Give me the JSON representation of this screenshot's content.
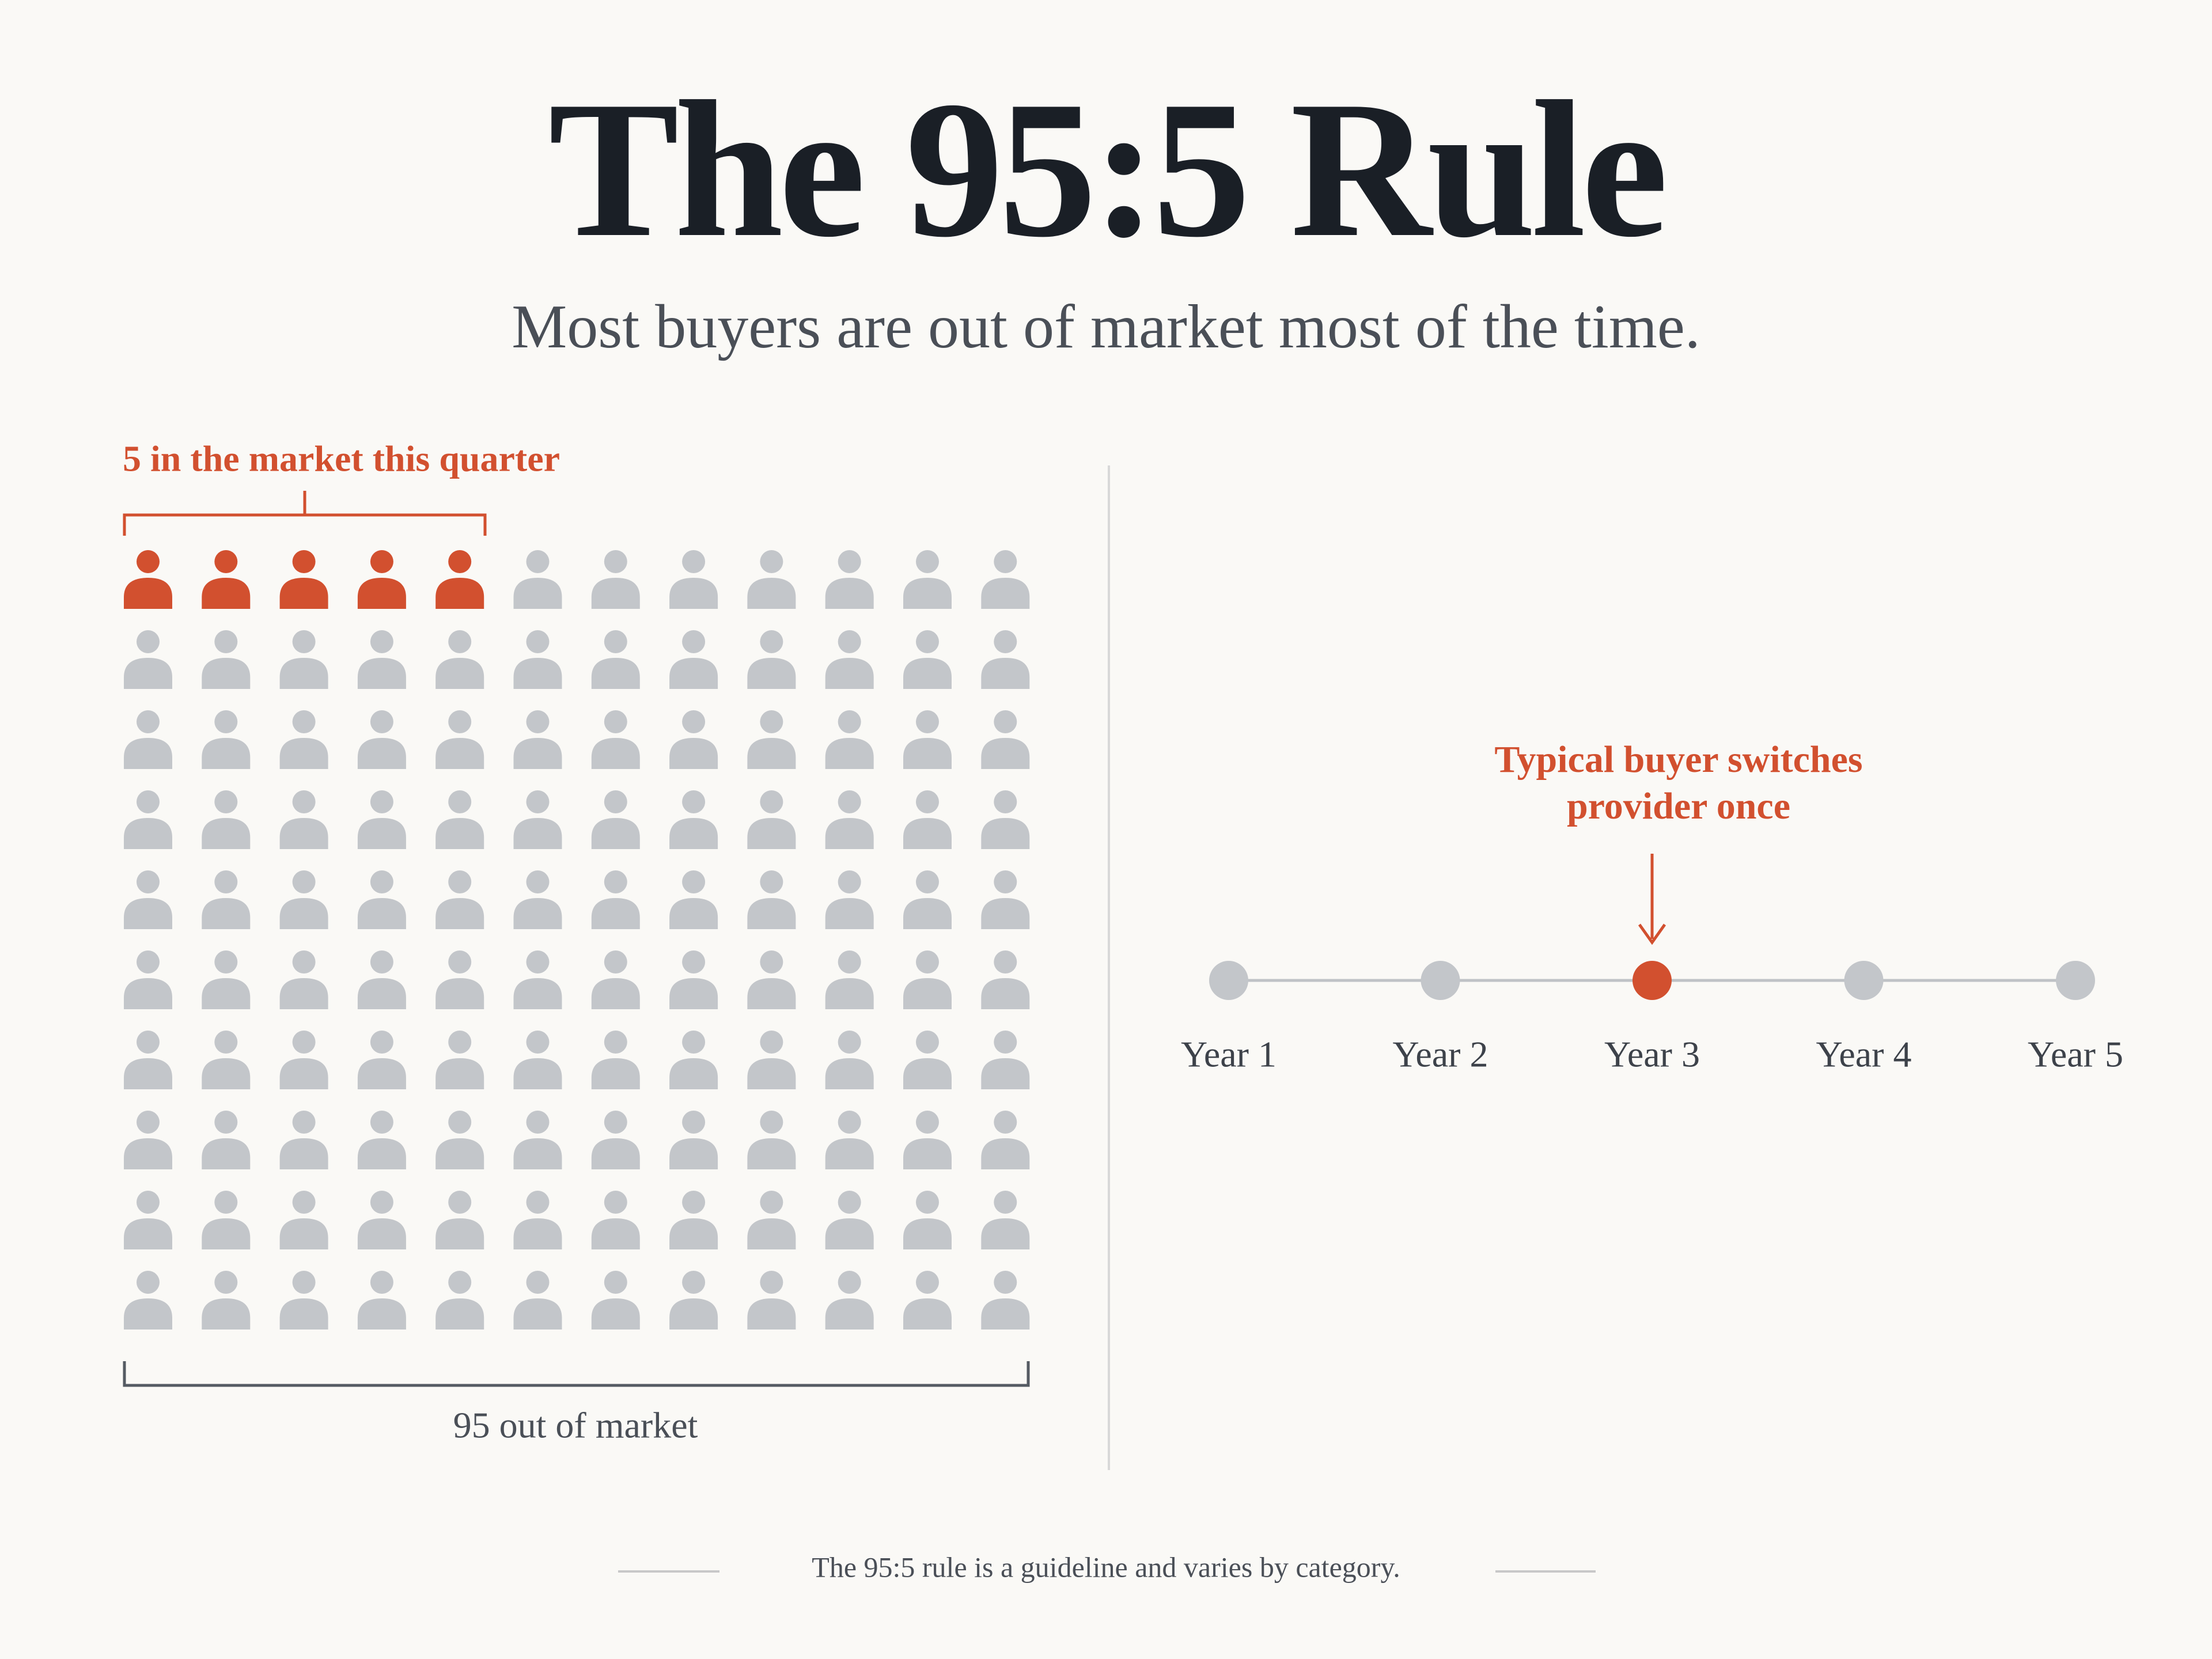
{
  "header": {
    "title": "The 95:5 Rule",
    "subtitle": "Most buyers are out of market most of the time."
  },
  "pictogram": {
    "in_market_label": "5 in the market this quarter",
    "out_of_market_label": "95 out of market"
  },
  "timeline": {
    "annotation": [
      "Typical buyer switches",
      "provider once"
    ],
    "years": [
      "Year 1",
      "Year 2",
      "Year 3",
      "Year 4",
      "Year 5"
    ]
  },
  "footnote": "The 95:5 rule is a guideline and varies by category."
}
